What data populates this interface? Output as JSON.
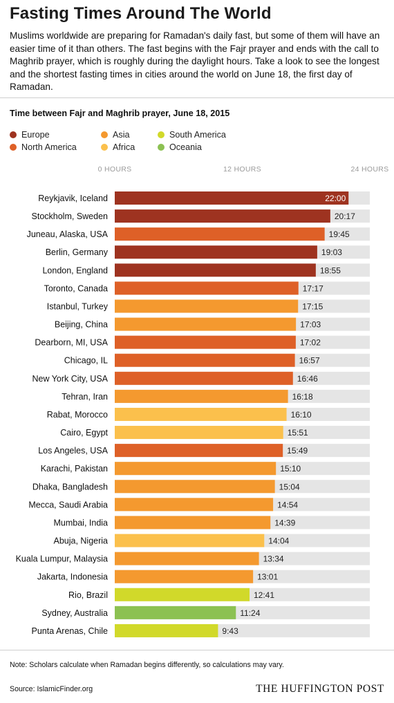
{
  "header": {
    "title": "Fasting Times Around The World",
    "intro": "Muslims worldwide are preparing for Ramadan's daily fast, but some of them will have an easier time of it than others. The fast begins with the Fajr prayer and ends with the call to Maghrib prayer, which is roughly during the daylight hours. Take a look to see the longest and the shortest fasting times in cities around the world on June 18, the first day of Ramadan."
  },
  "legend": {
    "items": [
      {
        "label": "Europe",
        "color": "#9e3320"
      },
      {
        "label": "North America",
        "color": "#de6027"
      },
      {
        "label": "Asia",
        "color": "#f4992f"
      },
      {
        "label": "Africa",
        "color": "#fbc04c"
      },
      {
        "label": "South America",
        "color": "#d1d92a"
      },
      {
        "label": "Oceania",
        "color": "#8cc152"
      }
    ]
  },
  "footer": {
    "note": "Note: Scholars calculate when Ramadan begins differently, so calculations may vary.",
    "source": "Source: IslamicFinder.org",
    "brand": "THE HUFFINGTON POST"
  },
  "chart_data": {
    "type": "bar",
    "orientation": "horizontal",
    "title": "Time between Fajr and Maghrib prayer, June 18, 2015",
    "xlim": [
      0,
      24
    ],
    "xticks": [
      0,
      12,
      24
    ],
    "xtick_labels": [
      "0 HOURS",
      "12 HOURS",
      "24 HOURS"
    ],
    "categories": [
      "Reykjavik, Iceland",
      "Stockholm, Sweden",
      "Juneau, Alaska, USA",
      "Berlin, Germany",
      "London, England",
      "Toronto, Canada",
      "Istanbul, Turkey",
      "Beijing, China",
      "Dearborn, MI, USA",
      "Chicago, IL",
      "New York City, USA",
      "Tehran, Iran",
      "Rabat, Morocco",
      "Cairo, Egypt",
      "Los Angeles, USA",
      "Karachi, Pakistan",
      "Dhaka, Bangladesh",
      "Mecca, Saudi Arabia",
      "Mumbai, India",
      "Abuja, Nigeria",
      "Kuala Lumpur, Malaysia",
      "Jakarta, Indonesia",
      "Rio, Brazil",
      "Sydney, Australia",
      "Punta Arenas, Chile"
    ],
    "labels": [
      "22:00",
      "20:17",
      "19:45",
      "19:03",
      "18:55",
      "17:17",
      "17:15",
      "17:03",
      "17:02",
      "16:57",
      "16:46",
      "16:18",
      "16:10",
      "15:51",
      "15:49",
      "15:10",
      "15:04",
      "14:54",
      "14:39",
      "14:04",
      "13:34",
      "13:01",
      "12:41",
      "11:24",
      "9:43"
    ],
    "values": [
      22.0,
      20.283,
      19.75,
      19.05,
      18.917,
      17.283,
      17.25,
      17.05,
      17.033,
      16.95,
      16.767,
      16.3,
      16.167,
      15.85,
      15.817,
      15.167,
      15.067,
      14.9,
      14.65,
      14.067,
      13.567,
      13.017,
      12.683,
      11.4,
      9.717
    ],
    "regions": [
      "Europe",
      "Europe",
      "North America",
      "Europe",
      "Europe",
      "North America",
      "Asia",
      "Asia",
      "North America",
      "North America",
      "North America",
      "Asia",
      "Africa",
      "Africa",
      "North America",
      "Asia",
      "Asia",
      "Asia",
      "Asia",
      "Africa",
      "Asia",
      "Asia",
      "South America",
      "Oceania",
      "South America"
    ],
    "background_color": "#e5e5e5"
  }
}
